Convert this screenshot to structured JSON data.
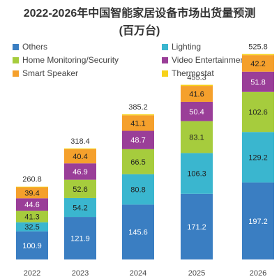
{
  "chart_data": {
    "type": "bar",
    "stacked": true,
    "title": "2022-2026年中国智能家居设备市场出货量预测",
    "subtitle": "(百万台)",
    "categories": [
      "2022",
      "2023",
      "2024",
      "2025",
      "2026"
    ],
    "series": [
      {
        "name": "Others",
        "color": "#3a7ec2",
        "values": [
          100.9,
          121.9,
          145.6,
          171.2,
          197.2
        ]
      },
      {
        "name": "Lighting",
        "color": "#3ab6cf",
        "values": [
          32.5,
          54.2,
          80.8,
          106.3,
          129.2
        ]
      },
      {
        "name": "Home Monitoring/Security",
        "color": "#a6cc3d",
        "values": [
          41.3,
          52.6,
          66.5,
          83.1,
          102.6
        ]
      },
      {
        "name": "Video Entertainment",
        "color": "#9a3e98",
        "values": [
          44.6,
          46.9,
          48.7,
          50.4,
          51.8
        ]
      },
      {
        "name": "Smart Speaker",
        "color": "#f5a02c",
        "values": [
          39.4,
          40.4,
          41.1,
          41.6,
          42.2
        ]
      },
      {
        "name": "Thermostat",
        "color": "#f7d21a",
        "values": [
          2.1,
          2.4,
          2.8,
          2.7,
          3.0
        ]
      }
    ],
    "totals": [
      "260.8",
      "318.4",
      "385.2",
      "455.3",
      "525.8"
    ],
    "legend_position": "top",
    "grid": false
  }
}
